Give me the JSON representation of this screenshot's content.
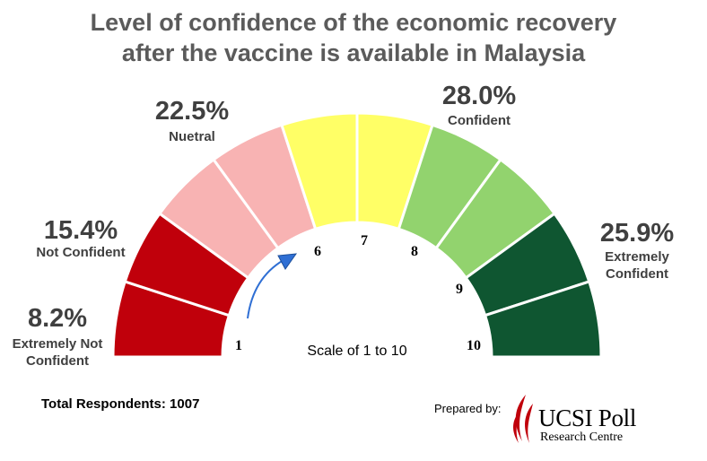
{
  "title_line1": "Level of confidence of the economic recovery",
  "title_line2": "after the vaccine is available in Malaysia",
  "footer": {
    "respondents": "Total Respondents: 1007",
    "prepared_by": "Prepared by:",
    "logo_main": "UCSI Poll",
    "logo_sub": "Research Centre"
  },
  "chart_data": {
    "type": "gauge",
    "center_label": "Scale of 1 to 10",
    "scale": [
      "1",
      "2",
      "3",
      "4",
      "5",
      "6",
      "7",
      "8",
      "9",
      "10"
    ],
    "scale_labels_visible": [
      "1",
      "6",
      "7",
      "8",
      "9",
      "10"
    ],
    "segment_colors": [
      "#c0000b",
      "#c0000b",
      "#f8b3b3",
      "#f8b3b3",
      "#ffff66",
      "#ffff66",
      "#92d36e",
      "#92d36e",
      "#0f5631",
      "#0f5631"
    ],
    "categories": [
      {
        "label": "Extremely Not Confident",
        "value": "8.2%",
        "scale": [
          1,
          2
        ],
        "color": "#c0000b"
      },
      {
        "label": "Not Confident",
        "value": "15.4%",
        "scale": [
          3,
          4
        ],
        "color": "#f8b3b3"
      },
      {
        "label": "Nuetral",
        "value": "22.5%",
        "scale": [
          5,
          6
        ],
        "color": "#ffff66"
      },
      {
        "label": "Confident",
        "value": "28.0%",
        "scale": [
          7,
          8
        ],
        "color": "#92d36e"
      },
      {
        "label": "Extremely Confident",
        "value": "25.9%",
        "scale": [
          9,
          10
        ],
        "color": "#0f5631"
      }
    ],
    "arrow_color": "#2f6fd4",
    "logo_color": "#c0000b"
  }
}
